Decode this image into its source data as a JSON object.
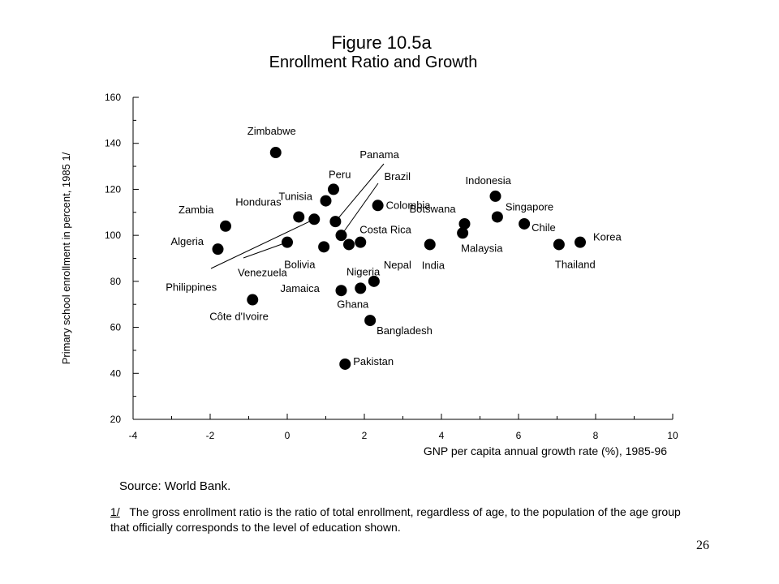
{
  "title": "Figure 10.5a",
  "subtitle": "Enrollment Ratio and Growth",
  "source_note": "Source: World Bank.",
  "footnote": {
    "marker": "1/",
    "text": "The gross enrollment ratio is the ratio of total enrollment, regardless of age, to the population of the age group that officially corresponds to the level of education shown."
  },
  "page_number": "26",
  "chart_data": {
    "type": "scatter",
    "title": "Enrollment Ratio and Growth",
    "xlabel": "GNP per capita annual growth rate (%), 1985-96",
    "ylabel": "Primary school enrollment in percent, 1985 1/",
    "xlim": [
      -4,
      10
    ],
    "ylim": [
      20,
      160
    ],
    "x_ticks": [
      -4,
      -2,
      0,
      2,
      4,
      6,
      8,
      10
    ],
    "y_ticks": [
      20,
      40,
      60,
      80,
      100,
      120,
      140,
      160
    ],
    "grid": false,
    "marker_color": "#000000",
    "points": [
      {
        "label": "Zimbabwe",
        "x": -0.3,
        "y": 136
      },
      {
        "label": "Zambia",
        "x": -1.6,
        "y": 104
      },
      {
        "label": "Algeria",
        "x": -1.8,
        "y": 94
      },
      {
        "label": "Côte d'Ivoire",
        "x": -0.9,
        "y": 72
      },
      {
        "label": "Honduras",
        "x": 0.3,
        "y": 108
      },
      {
        "label": "Philippines",
        "x": 0.7,
        "y": 107
      },
      {
        "label": "Tunisia",
        "x": 1.0,
        "y": 115
      },
      {
        "label": "Peru",
        "x": 1.2,
        "y": 120
      },
      {
        "label": "Venezuela",
        "x": 0.0,
        "y": 97
      },
      {
        "label": "Bolivia",
        "x": 0.95,
        "y": 95
      },
      {
        "label": "Panama",
        "x": 1.25,
        "y": 106
      },
      {
        "label": "Brazil",
        "x": 1.4,
        "y": 100
      },
      {
        "label": "Costa Rica",
        "x": 1.9,
        "y": 97
      },
      {
        "label": "Nigeria",
        "x": 1.6,
        "y": 96
      },
      {
        "label": "Colombia",
        "x": 2.35,
        "y": 113
      },
      {
        "label": "Jamaica",
        "x": 1.4,
        "y": 76
      },
      {
        "label": "Ghana",
        "x": 1.9,
        "y": 77
      },
      {
        "label": "Nepal",
        "x": 2.25,
        "y": 80
      },
      {
        "label": "Bangladesh",
        "x": 2.15,
        "y": 63
      },
      {
        "label": "Pakistan",
        "x": 1.5,
        "y": 44
      },
      {
        "label": "India",
        "x": 3.7,
        "y": 96
      },
      {
        "label": "Botswana",
        "x": 4.6,
        "y": 105
      },
      {
        "label": "Malaysia",
        "x": 4.55,
        "y": 101
      },
      {
        "label": "Indonesia",
        "x": 5.4,
        "y": 117
      },
      {
        "label": "Singapore",
        "x": 5.45,
        "y": 108
      },
      {
        "label": "Chile",
        "x": 6.15,
        "y": 105
      },
      {
        "label": "Thailand",
        "x": 7.05,
        "y": 96
      },
      {
        "label": "Korea",
        "x": 7.6,
        "y": 97
      }
    ]
  }
}
